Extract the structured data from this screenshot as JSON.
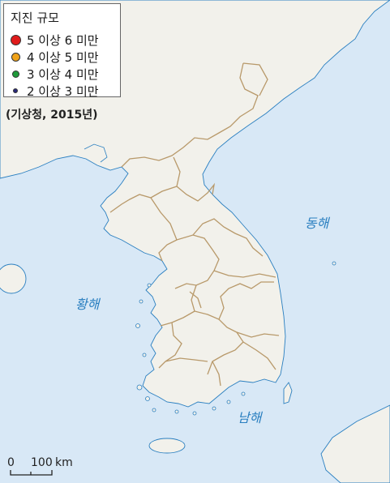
{
  "legend": {
    "title": "지진 규모",
    "items": [
      {
        "label": "5 이상 6 미만",
        "color": "#e01b1b",
        "size": 13
      },
      {
        "label": "4 이상 5 미만",
        "color": "#f0a31a",
        "size": 11
      },
      {
        "label": "3 이상 4 미만",
        "color": "#1f9a3a",
        "size": 9
      },
      {
        "label": "2 이상 3 미만",
        "color": "#2a2a7a",
        "size": 6
      }
    ]
  },
  "source": "(기상청, 2015년)",
  "seas": {
    "east": "동해",
    "yellow": "황해",
    "south": "남해"
  },
  "scale": {
    "zero": "0",
    "value": "100",
    "unit": "km"
  },
  "colors": {
    "sea": "#d8e8f6",
    "land": "#f2f1eb",
    "province_border": "#b8996a",
    "coast": "#2a7fc0"
  }
}
